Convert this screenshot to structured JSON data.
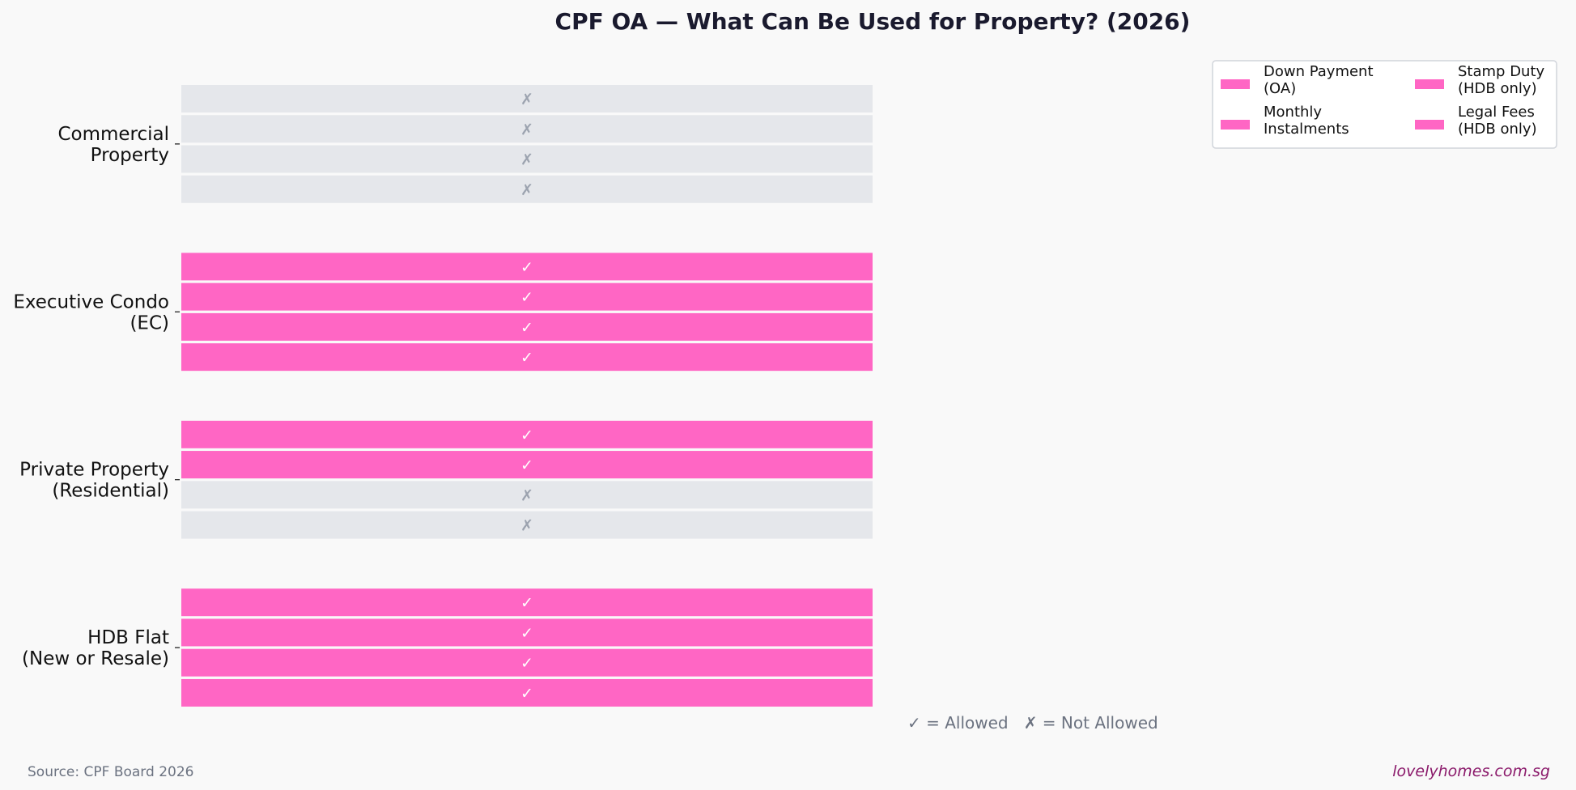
{
  "chart_data": {
    "type": "heatmap",
    "title": "CPF OA — What Can Be Used for Property? (2026)",
    "categories": [
      {
        "id": "commercial",
        "lines": [
          "Commercial",
          "Property"
        ]
      },
      {
        "id": "ec",
        "lines": [
          "Executive Condo",
          "(EC)"
        ]
      },
      {
        "id": "private",
        "lines": [
          "Private Property",
          "(Residential)"
        ]
      },
      {
        "id": "hdb",
        "lines": [
          "HDB Flat",
          "(New or Resale)"
        ]
      }
    ],
    "series": [
      {
        "name": "Down Payment (OA)",
        "legend_lines": [
          "Down Payment",
          "(OA)"
        ],
        "values": [
          0,
          1,
          1,
          1
        ]
      },
      {
        "name": "Monthly Instalments",
        "legend_lines": [
          "Monthly",
          "Instalments"
        ],
        "values": [
          0,
          1,
          1,
          1
        ]
      },
      {
        "name": "Stamp Duty (HDB only)",
        "legend_lines": [
          "Stamp Duty",
          "(HDB only)"
        ],
        "values": [
          0,
          1,
          0,
          1
        ]
      },
      {
        "name": "Legal Fees (HDB only)",
        "legend_lines": [
          "Legal Fees",
          "(HDB only)"
        ],
        "values": [
          0,
          1,
          0,
          1
        ]
      }
    ],
    "symbols": {
      "allowed": "✓",
      "not_allowed": "✗"
    },
    "key_text": "✓ = Allowed   ✗ = Not Allowed",
    "legend_position": "top-right",
    "grid": false,
    "colors": {
      "allowed": "#ff66c4",
      "not_allowed": "#e5e7eb",
      "background": "#f9f9f9"
    }
  },
  "footer": {
    "source": "Source: CPF Board 2026",
    "brand": "lovelyhomes.com.sg"
  }
}
